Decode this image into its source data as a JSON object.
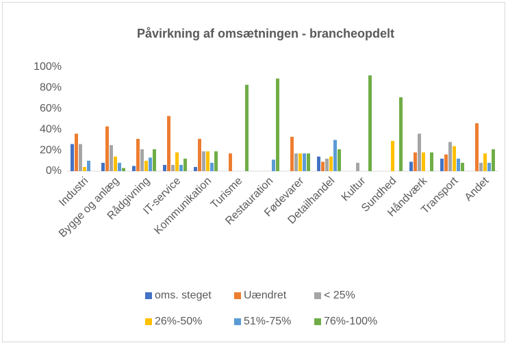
{
  "chart_data": {
    "type": "bar",
    "title": "Påvirkning af omsætningen - brancheopdelt",
    "categories": [
      "Industri",
      "Bygge og anlæg",
      "Rådgivning",
      "IT-service",
      "Kommunikation",
      "Turisme",
      "Restauration",
      "Fødevarer",
      "Detailhandel",
      "Kultur",
      "Sundhed",
      "Håndværk",
      "Transport",
      "Andet"
    ],
    "series": [
      {
        "name": "oms. steget",
        "color": "#4472c4",
        "values": [
          26,
          8,
          5,
          6,
          4,
          0,
          0,
          0,
          14,
          0,
          0,
          9,
          12,
          0
        ]
      },
      {
        "name": "Uændret",
        "color": "#ed7d31",
        "values": [
          36,
          43,
          31,
          53,
          31,
          17,
          0,
          33,
          9,
          0,
          0,
          18,
          16,
          46
        ]
      },
      {
        "name": "< 25%",
        "color": "#a5a5a5",
        "values": [
          26,
          25,
          21,
          6,
          19,
          0,
          0,
          17,
          12,
          8,
          0,
          36,
          28,
          8
        ]
      },
      {
        "name": "26%-50%",
        "color": "#ffc000",
        "values": [
          4,
          14,
          10,
          18,
          19,
          0,
          0,
          17,
          14,
          0,
          29,
          18,
          24,
          17
        ]
      },
      {
        "name": "51%-75%",
        "color": "#5b9bd5",
        "values": [
          10,
          8,
          13,
          6,
          8,
          0,
          11,
          17,
          30,
          0,
          0,
          0,
          12,
          8
        ]
      },
      {
        "name": "76%-100%",
        "color": "#70ad47",
        "values": [
          0,
          3,
          21,
          12,
          19,
          83,
          89,
          17,
          21,
          92,
          71,
          18,
          8,
          21
        ]
      }
    ],
    "ylim": [
      0,
      100
    ],
    "yticks": [
      {
        "value": 0,
        "label": "0%"
      },
      {
        "value": 20,
        "label": "20%"
      },
      {
        "value": 40,
        "label": "40%"
      },
      {
        "value": 60,
        "label": "60%"
      },
      {
        "value": 80,
        "label": "80%"
      },
      {
        "value": 100,
        "label": "100%"
      }
    ],
    "grid": false,
    "legend": "bottom"
  }
}
